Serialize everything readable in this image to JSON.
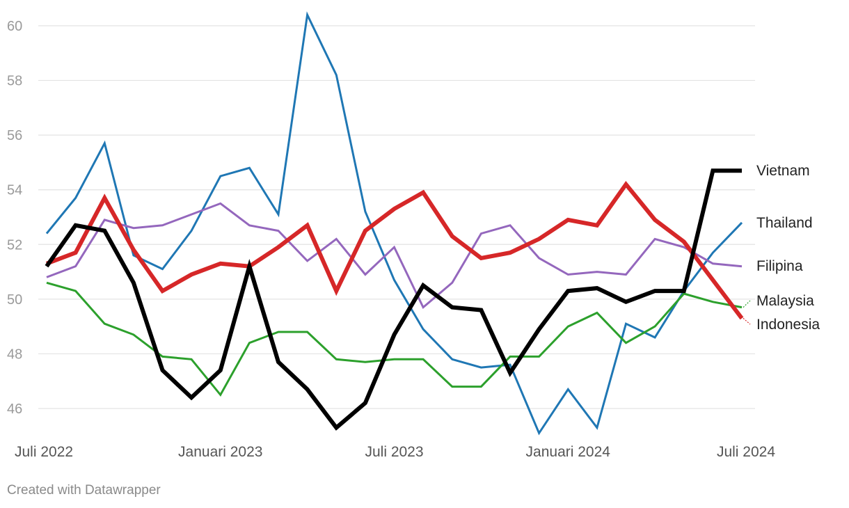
{
  "footer": "Created with Datawrapper",
  "chart_data": {
    "type": "line",
    "title": "",
    "xlabel": "",
    "ylabel": "",
    "ylim": [
      45,
      60.5
    ],
    "yticks": [
      46,
      48,
      50,
      52,
      54,
      56,
      58,
      60
    ],
    "xticks": [
      "Juli 2022",
      "Januari 2023",
      "Juli 2023",
      "Januari 2024",
      "Juli 2024"
    ],
    "xtick_months": [
      0,
      6,
      12,
      18,
      24
    ],
    "grid": true,
    "legend": "direct labels at right end of lines",
    "x": [
      "2022-07",
      "2022-08",
      "2022-09",
      "2022-10",
      "2022-11",
      "2022-12",
      "2023-01",
      "2023-02",
      "2023-03",
      "2023-04",
      "2023-05",
      "2023-06",
      "2023-07",
      "2023-08",
      "2023-09",
      "2023-10",
      "2023-11",
      "2023-12",
      "2024-01",
      "2024-02",
      "2024-03",
      "2024-04",
      "2024-05",
      "2024-06",
      "2024-07"
    ],
    "series": [
      {
        "name": "Thailand",
        "color": "#1f77b4",
        "width": 3,
        "values": [
          52.4,
          53.7,
          55.7,
          51.6,
          51.1,
          52.5,
          54.5,
          54.8,
          53.1,
          60.4,
          58.2,
          53.2,
          50.7,
          48.9,
          47.8,
          47.5,
          47.6,
          45.1,
          46.7,
          45.3,
          49.1,
          48.6,
          50.3,
          51.7,
          52.8
        ]
      },
      {
        "name": "Filipina",
        "color": "#9467bd",
        "width": 3,
        "values": [
          50.8,
          51.2,
          52.9,
          52.6,
          52.7,
          53.1,
          53.5,
          52.7,
          52.5,
          51.4,
          52.2,
          50.9,
          51.9,
          49.7,
          50.6,
          52.4,
          52.7,
          51.5,
          50.9,
          51.0,
          50.9,
          52.2,
          51.9,
          51.3,
          51.2
        ]
      },
      {
        "name": "Malaysia",
        "color": "#2ca02c",
        "width": 3,
        "values": [
          50.6,
          50.3,
          49.1,
          48.7,
          47.9,
          47.8,
          46.5,
          48.4,
          48.8,
          48.8,
          47.8,
          47.7,
          47.8,
          47.8,
          46.8,
          46.8,
          47.9,
          47.9,
          49.0,
          49.5,
          48.4,
          49.0,
          50.2,
          49.9,
          49.7
        ]
      },
      {
        "name": "Indonesia",
        "color": "#d62728",
        "width": 6,
        "values": [
          51.3,
          51.7,
          53.7,
          51.8,
          50.3,
          50.9,
          51.3,
          51.2,
          51.9,
          52.7,
          50.3,
          52.5,
          53.3,
          53.9,
          52.3,
          51.5,
          51.7,
          52.2,
          52.9,
          52.7,
          54.2,
          52.9,
          52.1,
          50.7,
          49.3
        ]
      },
      {
        "name": "Vietnam",
        "color": "#000000",
        "width": 6,
        "values": [
          51.2,
          52.7,
          52.5,
          50.6,
          47.4,
          46.4,
          47.4,
          51.2,
          47.7,
          46.7,
          45.3,
          46.2,
          48.7,
          50.5,
          49.7,
          49.6,
          47.3,
          48.9,
          50.3,
          50.4,
          49.9,
          50.3,
          50.3,
          54.7,
          54.7
        ]
      }
    ],
    "labels": [
      {
        "series": "Vietnam",
        "text": "Vietnam",
        "value": 54.7
      },
      {
        "series": "Thailand",
        "text": "Thailand",
        "value": 52.8
      },
      {
        "series": "Filipina",
        "text": "Filipina",
        "value": 51.2
      },
      {
        "series": "Malaysia",
        "text": "Malaysia",
        "value": 49.7
      },
      {
        "series": "Indonesia",
        "text": "Indonesia",
        "value": 49.3
      }
    ]
  }
}
